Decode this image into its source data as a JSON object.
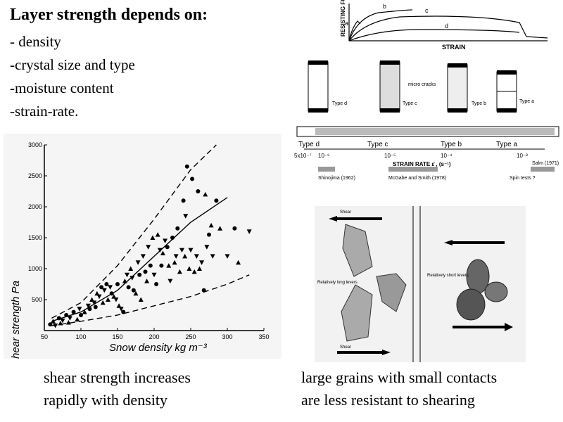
{
  "heading": "Layer strength depends on:",
  "factors": [
    "- density",
    "-crystal size and type",
    "-moisture content",
    "-strain-rate."
  ],
  "captions": {
    "left_line1": "shear strength increases",
    "left_line2": "rapidly with density",
    "right_line1": "large grains with small contacts",
    "right_line2": "are less resistant to shearing"
  },
  "force_curve": {
    "ylabel": "RESISTING FORCE",
    "xlabel": "STRAIN",
    "curve_labels": [
      "a",
      "b",
      "c",
      "d"
    ]
  },
  "specimens": {
    "types": [
      "Type d",
      "Type c",
      "Type b",
      "Type a"
    ],
    "micro_cracks_label": "micro cracks"
  },
  "strain_rate": {
    "band_types": [
      "Type d",
      "Type c",
      "Type b",
      "Type a"
    ],
    "tick_labels": [
      "5x10⁻⁷",
      "10⁻⁶",
      "10⁻⁵",
      "10⁻⁴",
      "10⁻³"
    ],
    "axis_label": "STRAIN RATE  ε̇ , (s⁻¹)",
    "studies": [
      "Shinojima (1962)",
      "McGabe and Smith (1978)",
      "Salm (1971)",
      "Spin tests ?"
    ]
  },
  "grains": {
    "shear_top": "Shear",
    "shear_bottom": "Shear",
    "long_levers": "Relatively long levers",
    "short_levers": "Relatively short levers"
  },
  "chart_data": {
    "type": "scatter",
    "xlabel": "Snow density kg m⁻³",
    "ylabel": "Shear strength Pa",
    "xlim": [
      50,
      350
    ],
    "ylim": [
      0,
      3000
    ],
    "x_ticks": [
      50,
      100,
      150,
      200,
      250,
      300,
      350
    ],
    "y_ticks": [
      500,
      1000,
      1500,
      2000,
      2500,
      3000
    ],
    "points": [
      [
        58,
        100
      ],
      [
        62,
        150
      ],
      [
        65,
        80
      ],
      [
        70,
        200
      ],
      [
        72,
        120
      ],
      [
        75,
        160
      ],
      [
        80,
        250
      ],
      [
        83,
        130
      ],
      [
        85,
        200
      ],
      [
        90,
        300
      ],
      [
        95,
        180
      ],
      [
        98,
        350
      ],
      [
        100,
        250
      ],
      [
        105,
        300
      ],
      [
        110,
        400
      ],
      [
        112,
        350
      ],
      [
        115,
        500
      ],
      [
        118,
        450
      ],
      [
        120,
        380
      ],
      [
        122,
        600
      ],
      [
        125,
        550
      ],
      [
        128,
        700
      ],
      [
        130,
        450
      ],
      [
        132,
        650
      ],
      [
        135,
        750
      ],
      [
        137,
        500
      ],
      [
        140,
        700
      ],
      [
        142,
        600
      ],
      [
        145,
        550
      ],
      [
        148,
        500
      ],
      [
        150,
        750
      ],
      [
        152,
        400
      ],
      [
        155,
        350
      ],
      [
        158,
        300
      ],
      [
        160,
        800
      ],
      [
        163,
        900
      ],
      [
        165,
        700
      ],
      [
        168,
        1000
      ],
      [
        170,
        850
      ],
      [
        172,
        650
      ],
      [
        175,
        600
      ],
      [
        178,
        1100
      ],
      [
        180,
        900
      ],
      [
        182,
        500
      ],
      [
        185,
        1200
      ],
      [
        188,
        950
      ],
      [
        190,
        800
      ],
      [
        192,
        1350
      ],
      [
        195,
        1050
      ],
      [
        198,
        1500
      ],
      [
        200,
        900
      ],
      [
        203,
        750
      ],
      [
        205,
        1550
      ],
      [
        208,
        1300
      ],
      [
        210,
        1050
      ],
      [
        212,
        1250
      ],
      [
        215,
        1450
      ],
      [
        218,
        1350
      ],
      [
        220,
        1050
      ],
      [
        222,
        800
      ],
      [
        225,
        1500
      ],
      [
        228,
        1100
      ],
      [
        230,
        1200
      ],
      [
        232,
        1650
      ],
      [
        235,
        950
      ],
      [
        238,
        1300
      ],
      [
        240,
        2100
      ],
      [
        242,
        1200
      ],
      [
        243,
        1850
      ],
      [
        245,
        2650
      ],
      [
        248,
        1000
      ],
      [
        250,
        1300
      ],
      [
        252,
        2450
      ],
      [
        255,
        950
      ],
      [
        258,
        1200
      ],
      [
        260,
        2250
      ],
      [
        262,
        1000
      ],
      [
        265,
        1100
      ],
      [
        268,
        650
      ],
      [
        270,
        2200
      ],
      [
        272,
        1350
      ],
      [
        275,
        1550
      ],
      [
        278,
        1700
      ],
      [
        280,
        1200
      ],
      [
        285,
        2100
      ],
      [
        290,
        1650
      ],
      [
        300,
        1200
      ],
      [
        310,
        1650
      ],
      [
        315,
        1100
      ],
      [
        330,
        1600
      ]
    ],
    "bands": {
      "upper": [
        [
          60,
          200
        ],
        [
          100,
          450
        ],
        [
          150,
          1050
        ],
        [
          200,
          1800
        ],
        [
          250,
          2600
        ],
        [
          285,
          3000
        ]
      ],
      "middle": [
        [
          60,
          150
        ],
        [
          100,
          300
        ],
        [
          150,
          650
        ],
        [
          200,
          1200
        ],
        [
          250,
          1750
        ],
        [
          300,
          2150
        ]
      ],
      "lower": [
        [
          60,
          80
        ],
        [
          100,
          150
        ],
        [
          150,
          250
        ],
        [
          200,
          400
        ],
        [
          250,
          550
        ],
        [
          300,
          750
        ],
        [
          330,
          900
        ]
      ]
    }
  }
}
